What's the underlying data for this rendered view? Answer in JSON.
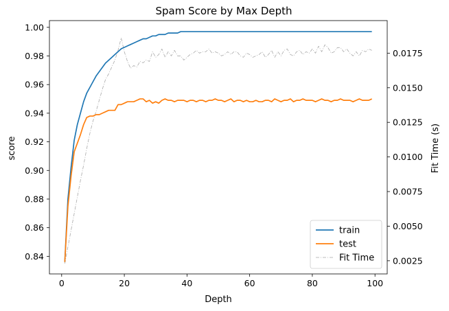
{
  "chart_data": {
    "type": "line",
    "title": "Spam Score by Max Depth",
    "xlabel": "Depth",
    "ylabel": "score",
    "y2label": "Fit Time (s)",
    "xlim": [
      -3.9,
      103.9
    ],
    "ylim": [
      0.8277,
      1.0047
    ],
    "y2lim": [
      0.00155,
      0.01985
    ],
    "xticks": [
      0,
      20,
      40,
      60,
      80,
      100
    ],
    "yticks": [
      0.84,
      0.86,
      0.88,
      0.9,
      0.92,
      0.94,
      0.96,
      0.98,
      1.0
    ],
    "ytick_labels": [
      "0.84",
      "0.86",
      "0.88",
      "0.90",
      "0.92",
      "0.94",
      "0.96",
      "0.98",
      "1.00"
    ],
    "y2ticks": [
      0.0025,
      0.005,
      0.0075,
      0.01,
      0.0125,
      0.015,
      0.0175
    ],
    "y2tick_labels": [
      "0.0025",
      "0.0050",
      "0.0075",
      "0.0100",
      "0.0125",
      "0.0150",
      "0.0175"
    ],
    "grid": false,
    "legend_position": "lower-right",
    "x": [
      1,
      2,
      3,
      4,
      5,
      6,
      7,
      8,
      9,
      10,
      11,
      12,
      13,
      14,
      15,
      16,
      17,
      18,
      19,
      20,
      21,
      22,
      23,
      24,
      25,
      26,
      27,
      28,
      29,
      30,
      31,
      32,
      33,
      34,
      35,
      36,
      37,
      38,
      39,
      40,
      41,
      42,
      43,
      44,
      45,
      46,
      47,
      48,
      49,
      50,
      51,
      52,
      53,
      54,
      55,
      56,
      57,
      58,
      59,
      60,
      61,
      62,
      63,
      64,
      65,
      66,
      67,
      68,
      69,
      70,
      71,
      72,
      73,
      74,
      75,
      76,
      77,
      78,
      79,
      80,
      81,
      82,
      83,
      84,
      85,
      86,
      87,
      88,
      89,
      90,
      91,
      92,
      93,
      94,
      95,
      96,
      97,
      98,
      99
    ],
    "series": [
      {
        "name": "train",
        "color": "#1f77b4",
        "axis": "left",
        "style": "solid",
        "values": [
          0.836,
          0.88,
          0.902,
          0.921,
          0.932,
          0.94,
          0.948,
          0.954,
          0.958,
          0.962,
          0.966,
          0.969,
          0.972,
          0.975,
          0.977,
          0.979,
          0.981,
          0.983,
          0.985,
          0.986,
          0.987,
          0.988,
          0.989,
          0.99,
          0.991,
          0.992,
          0.992,
          0.993,
          0.994,
          0.994,
          0.995,
          0.995,
          0.995,
          0.996,
          0.996,
          0.996,
          0.996,
          0.997,
          0.997,
          0.997,
          0.997,
          0.997,
          0.997,
          0.997,
          0.997,
          0.997,
          0.997,
          0.997,
          0.997,
          0.997,
          0.997,
          0.997,
          0.997,
          0.997,
          0.997,
          0.997,
          0.997,
          0.997,
          0.997,
          0.997,
          0.997,
          0.997,
          0.997,
          0.997,
          0.997,
          0.997,
          0.997,
          0.997,
          0.997,
          0.997,
          0.997,
          0.997,
          0.997,
          0.997,
          0.997,
          0.997,
          0.997,
          0.997,
          0.997,
          0.997,
          0.997,
          0.997,
          0.997,
          0.997,
          0.997,
          0.997,
          0.997,
          0.997,
          0.997,
          0.997,
          0.997,
          0.997,
          0.997,
          0.997,
          0.997,
          0.997,
          0.997,
          0.997,
          0.997
        ]
      },
      {
        "name": "test",
        "color": "#ff7f0e",
        "axis": "left",
        "style": "solid",
        "values": [
          0.836,
          0.875,
          0.896,
          0.913,
          0.919,
          0.925,
          0.932,
          0.937,
          0.938,
          0.938,
          0.939,
          0.939,
          0.94,
          0.941,
          0.942,
          0.942,
          0.942,
          0.946,
          0.946,
          0.947,
          0.948,
          0.948,
          0.948,
          0.949,
          0.95,
          0.95,
          0.948,
          0.949,
          0.947,
          0.948,
          0.947,
          0.949,
          0.95,
          0.949,
          0.949,
          0.948,
          0.949,
          0.949,
          0.949,
          0.948,
          0.949,
          0.949,
          0.948,
          0.949,
          0.949,
          0.948,
          0.949,
          0.949,
          0.95,
          0.949,
          0.949,
          0.948,
          0.949,
          0.95,
          0.948,
          0.949,
          0.949,
          0.948,
          0.949,
          0.948,
          0.948,
          0.949,
          0.948,
          0.948,
          0.949,
          0.949,
          0.948,
          0.95,
          0.949,
          0.948,
          0.949,
          0.949,
          0.95,
          0.948,
          0.949,
          0.949,
          0.95,
          0.949,
          0.949,
          0.949,
          0.948,
          0.949,
          0.95,
          0.949,
          0.949,
          0.948,
          0.949,
          0.949,
          0.95,
          0.949,
          0.949,
          0.949,
          0.948,
          0.949,
          0.95,
          0.949,
          0.949,
          0.949,
          0.95
        ]
      },
      {
        "name": "Fit Time",
        "color": "#a9a9a9",
        "axis": "right",
        "style": "dashdot",
        "values": [
          0.0023,
          0.0035,
          0.0047,
          0.0059,
          0.0071,
          0.0083,
          0.0094,
          0.0106,
          0.0117,
          0.0126,
          0.0133,
          0.0141,
          0.0149,
          0.0156,
          0.016,
          0.0165,
          0.017,
          0.0177,
          0.0186,
          0.0176,
          0.0169,
          0.0164,
          0.0166,
          0.0165,
          0.0169,
          0.0168,
          0.017,
          0.0169,
          0.0176,
          0.0172,
          0.0174,
          0.0178,
          0.0172,
          0.0176,
          0.0173,
          0.0177,
          0.0173,
          0.0173,
          0.017,
          0.0172,
          0.0174,
          0.0175,
          0.0177,
          0.0175,
          0.0176,
          0.0176,
          0.0178,
          0.0175,
          0.0176,
          0.0175,
          0.0173,
          0.0174,
          0.0176,
          0.0174,
          0.0176,
          0.0176,
          0.0173,
          0.0172,
          0.0175,
          0.0174,
          0.0172,
          0.0173,
          0.0174,
          0.0176,
          0.0172,
          0.0174,
          0.0177,
          0.0172,
          0.0176,
          0.0173,
          0.0177,
          0.0178,
          0.0174,
          0.0173,
          0.0176,
          0.0177,
          0.0174,
          0.0176,
          0.0175,
          0.0178,
          0.0175,
          0.018,
          0.0176,
          0.0181,
          0.0179,
          0.0175,
          0.0176,
          0.0179,
          0.0179,
          0.0176,
          0.0178,
          0.0175,
          0.0173,
          0.0176,
          0.0173,
          0.0177,
          0.0176,
          0.0178,
          0.0177
        ]
      }
    ]
  }
}
